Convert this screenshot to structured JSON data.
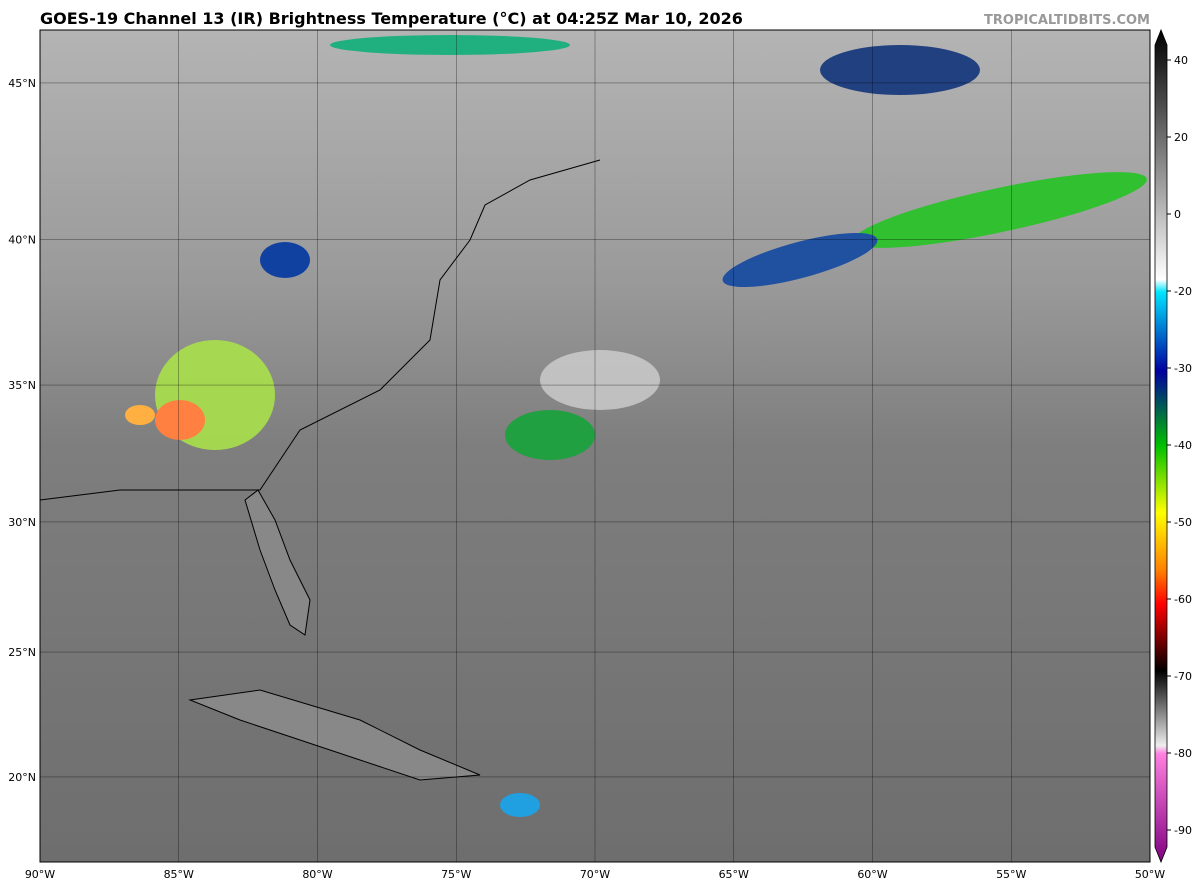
{
  "title": "GOES-19 Channel 13 (IR) Brightness Temperature (°C) at 04:25Z Mar 10, 2026",
  "watermark": "TROPICALTIDBITS.COM",
  "map": {
    "lonlim": [
      -90,
      -50
    ],
    "latlim": [
      16.5,
      46.6
    ],
    "lat_ticks": [
      {
        "value": 45,
        "label": "45°N"
      },
      {
        "value": 40,
        "label": "40°N"
      },
      {
        "value": 35,
        "label": "35°N"
      },
      {
        "value": 30,
        "label": "30°N"
      },
      {
        "value": 25,
        "label": "25°N"
      },
      {
        "value": 20,
        "label": "20°N"
      }
    ],
    "lon_ticks": [
      {
        "value": -90,
        "label": "90°W"
      },
      {
        "value": -85,
        "label": "85°W"
      },
      {
        "value": -80,
        "label": "80°W"
      },
      {
        "value": -75,
        "label": "75°W"
      },
      {
        "value": -70,
        "label": "70°W"
      },
      {
        "value": -65,
        "label": "65°W"
      },
      {
        "value": -60,
        "label": "60°W"
      },
      {
        "value": -55,
        "label": "55°W"
      },
      {
        "value": -50,
        "label": "50°W"
      }
    ]
  },
  "colorbar": {
    "ticks": [
      40,
      20,
      0,
      -20,
      -30,
      -40,
      -50,
      -60,
      -70,
      -80,
      -90
    ]
  }
}
